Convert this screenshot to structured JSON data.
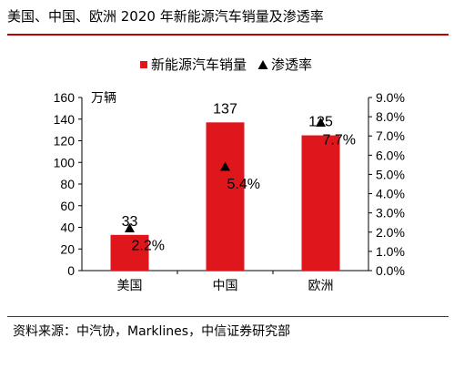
{
  "header": {
    "title": "美国、中国、欧洲 2020 年新能源汽车销量及渗透率"
  },
  "footer": {
    "source": "资料来源：中汽协，Marklines，中信证券研究部"
  },
  "colors": {
    "accent": "#c00000",
    "bar": "#e0161d",
    "marker": "#000000"
  },
  "chart_data": {
    "type": "bar",
    "categories": [
      "美国",
      "中国",
      "欧洲"
    ],
    "series": [
      {
        "name": "新能源汽车销量",
        "type": "bar",
        "axis": "left",
        "values": [
          33,
          137,
          125
        ],
        "labels": [
          "33",
          "137",
          "125"
        ]
      },
      {
        "name": "渗透率",
        "type": "scatter",
        "marker": "triangle",
        "axis": "right",
        "values": [
          2.2,
          5.4,
          7.7
        ],
        "labels": [
          "2.2%",
          "5.4%",
          "7.7%"
        ]
      }
    ],
    "y_left": {
      "unit": "万辆",
      "ylim": [
        0,
        160
      ],
      "ticks": [
        "0",
        "20",
        "40",
        "60",
        "80",
        "100",
        "120",
        "140",
        "160"
      ]
    },
    "y_right": {
      "ylim": [
        0,
        9
      ],
      "ticks": [
        "0.0%",
        "1.0%",
        "2.0%",
        "3.0%",
        "4.0%",
        "5.0%",
        "6.0%",
        "7.0%",
        "8.0%",
        "9.0%"
      ]
    },
    "legend": {
      "position": "top",
      "items": [
        "新能源汽车销量",
        "渗透率"
      ]
    },
    "grid": false
  }
}
